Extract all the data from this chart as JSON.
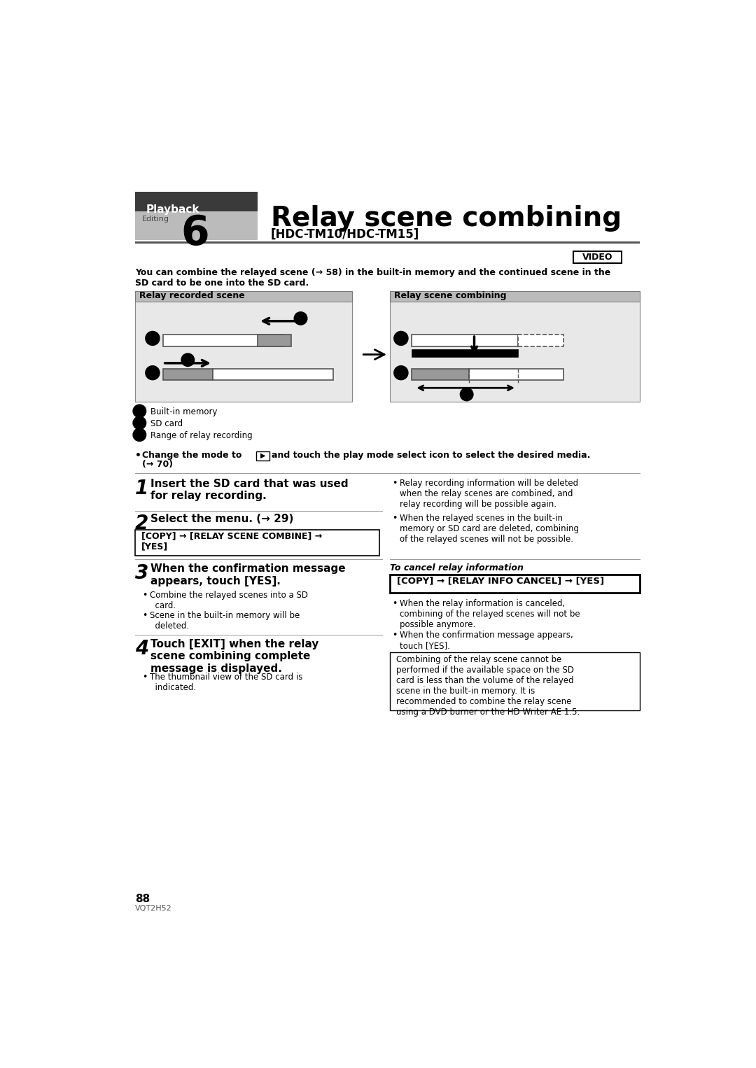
{
  "bg_color": "#ffffff",
  "header": {
    "playback_text": "Playback",
    "playback_bg": "#3a3a3a",
    "playback_text_color": "#ffffff",
    "editing_label": "Editing",
    "chapter_number": "6",
    "chapter_box_bg": "#bbbbbb",
    "title": "Relay scene combining",
    "subtitle": "[HDC-TM10/HDC-TM15]"
  },
  "video_badge": "VIDEO",
  "intro_text": "You can combine the relayed scene (→ 58) in the built-in memory and the continued scene in the\nSD card to be one into the SD card.",
  "diagram_left_title": "Relay recorded scene",
  "diagram_right_title": "Relay scene combining",
  "legend_a": "Built-in memory",
  "legend_b": "SD card",
  "legend_c": "Range of relay recording",
  "copy_box1": "[COPY] → [RELAY SCENE COMBINE] →\n[YES]",
  "right_bullets_top1": "Relay recording information will be deleted\nwhen the relay scenes are combined, and\nrelay recording will be possible again.",
  "right_bullets_top2": "When the relayed scenes in the built-in\nmemory or SD card are deleted, combining\nof the relayed scenes will not be possible.",
  "cancel_title": "To cancel relay information",
  "copy_box2": "[COPY] → [RELAY INFO CANCEL] → [YES]",
  "right_bullet_bot1": "When the relay information is canceled,\ncombining of the relayed scenes will not be\npossible anymore.",
  "right_bullet_bot2": "When the confirmation message appears,\ntouch [YES].",
  "note_box_text": "Combining of the relay scene cannot be\nperformed if the available space on the SD\ncard is less than the volume of the relayed\nscene in the built-in memory. It is\nrecommended to combine the relay scene\nusing a DVD burner or the HD Writer AE 1.5.",
  "page_number": "88",
  "model_number": "VQT2H52"
}
